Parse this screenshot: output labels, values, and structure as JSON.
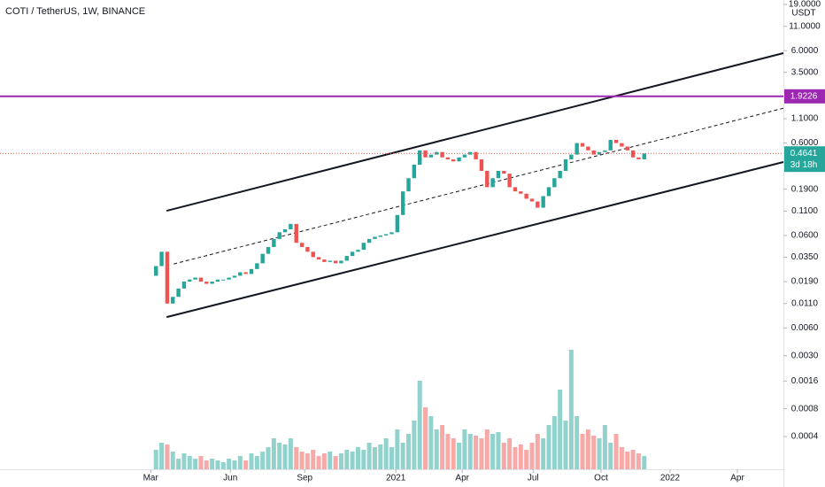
{
  "chart_data": {
    "type": "candlestick",
    "title": "COTI / TetherUS, 1W, BINANCE",
    "currency": "USDT",
    "log_scale": true,
    "xlim": [
      -27.8,
      111.8
    ],
    "xticks": [
      {
        "value": -0.95,
        "label": "Mar"
      },
      {
        "value": 13.25,
        "label": "Jun"
      },
      {
        "value": 26.5,
        "label": "Sep"
      },
      {
        "value": 42.74,
        "label": "2021"
      },
      {
        "value": 54.57,
        "label": "Apr"
      },
      {
        "value": 67.2,
        "label": "Jul"
      },
      {
        "value": 79.3,
        "label": "Oct"
      },
      {
        "value": 91.6,
        "label": "2022"
      },
      {
        "value": 103.6,
        "label": "Apr"
      }
    ],
    "ylim": [
      21.2,
      0.000177
    ],
    "yticks": [
      {
        "value": 19,
        "label": "19.0000"
      },
      {
        "value": 11,
        "label": "11.0000"
      },
      {
        "value": 6,
        "label": "6.0000"
      },
      {
        "value": 3.5,
        "label": "3.5000"
      },
      {
        "value": 1.1,
        "label": "1.1000"
      },
      {
        "value": 0.6,
        "label": "0.6000"
      },
      {
        "value": 0.19,
        "label": "0.1900"
      },
      {
        "value": 0.11,
        "label": "0.1100"
      },
      {
        "value": 0.06,
        "label": "0.0600"
      },
      {
        "value": 0.035,
        "label": "0.0350"
      },
      {
        "value": 0.019,
        "label": "0.0190"
      },
      {
        "value": 0.011,
        "label": "0.0110"
      },
      {
        "value": 0.006,
        "label": "0.0060"
      },
      {
        "value": 0.003,
        "label": "0.0030"
      },
      {
        "value": 0.0016,
        "label": "0.0016"
      },
      {
        "value": 0.0008,
        "label": "0.0008"
      },
      {
        "value": 0.0004,
        "label": "0.0004"
      }
    ],
    "up_color": "#26a69a",
    "down_color": "#ef5350",
    "open": [
      0.022,
      0.028,
      0.04,
      0.011,
      0.013,
      0.016,
      0.019,
      0.02,
      0.021,
      0.019,
      0.018,
      0.019,
      0.02,
      0.02,
      0.021,
      0.022,
      0.024,
      0.023,
      0.026,
      0.03,
      0.038,
      0.045,
      0.055,
      0.065,
      0.07,
      0.08,
      0.05,
      0.045,
      0.04,
      0.035,
      0.033,
      0.031,
      0.032,
      0.03,
      0.032,
      0.036,
      0.04,
      0.042,
      0.05,
      0.055,
      0.058,
      0.06,
      0.062,
      0.065,
      0.1,
      0.18,
      0.25,
      0.35,
      0.5,
      0.42,
      0.45,
      0.48,
      0.42,
      0.4,
      0.38,
      0.42,
      0.45,
      0.48,
      0.4,
      0.3,
      0.2,
      0.25,
      0.3,
      0.28,
      0.2,
      0.18,
      0.17,
      0.15,
      0.14,
      0.12,
      0.16,
      0.2,
      0.25,
      0.3,
      0.4,
      0.45,
      0.6,
      0.55,
      0.5,
      0.45,
      0.48,
      0.5,
      0.65,
      0.6,
      0.55,
      0.5,
      0.42,
      0.4
    ],
    "close": [
      0.028,
      0.04,
      0.011,
      0.013,
      0.016,
      0.019,
      0.02,
      0.021,
      0.019,
      0.018,
      0.019,
      0.02,
      0.02,
      0.021,
      0.022,
      0.024,
      0.023,
      0.026,
      0.03,
      0.038,
      0.045,
      0.055,
      0.065,
      0.07,
      0.08,
      0.05,
      0.045,
      0.04,
      0.035,
      0.033,
      0.031,
      0.032,
      0.03,
      0.032,
      0.036,
      0.04,
      0.042,
      0.05,
      0.055,
      0.058,
      0.06,
      0.062,
      0.065,
      0.1,
      0.18,
      0.25,
      0.35,
      0.5,
      0.42,
      0.45,
      0.48,
      0.42,
      0.4,
      0.38,
      0.42,
      0.45,
      0.48,
      0.4,
      0.3,
      0.2,
      0.25,
      0.3,
      0.28,
      0.2,
      0.18,
      0.17,
      0.15,
      0.14,
      0.12,
      0.16,
      0.2,
      0.25,
      0.3,
      0.4,
      0.45,
      0.6,
      0.55,
      0.5,
      0.45,
      0.48,
      0.5,
      0.65,
      0.6,
      0.55,
      0.5,
      0.42,
      0.4,
      0.4641
    ],
    "vlim": [
      0,
      150
    ],
    "volume": [
      22,
      30,
      28,
      20,
      12,
      18,
      15,
      12,
      15,
      10,
      12,
      10,
      8,
      12,
      10,
      15,
      10,
      18,
      15,
      20,
      25,
      35,
      30,
      28,
      35,
      25,
      20,
      18,
      22,
      15,
      18,
      20,
      15,
      18,
      22,
      20,
      25,
      22,
      30,
      25,
      28,
      35,
      25,
      45,
      30,
      40,
      55,
      100,
      70,
      60,
      45,
      50,
      40,
      35,
      30,
      45,
      40,
      38,
      35,
      45,
      40,
      42,
      30,
      35,
      25,
      28,
      22,
      30,
      40,
      35,
      50,
      60,
      90,
      55,
      135,
      60,
      40,
      45,
      38,
      35,
      50,
      30,
      40,
      25,
      20,
      22,
      18,
      15
    ],
    "hline": 1.9226,
    "hline_color": "#9c27b0",
    "last_price": 0.4641,
    "countdown": "3d 18h",
    "channels": [
      {
        "style": "solid",
        "points": [
          [
            1.89,
            0.111
          ],
          [
            111.8,
            5.64
          ]
        ]
      },
      {
        "style": "solid",
        "points": [
          [
            1.89,
            0.00785
          ],
          [
            111.8,
            0.374
          ]
        ]
      },
      {
        "style": "dashed",
        "points": [
          [
            3.15,
            0.0295
          ],
          [
            111.8,
            1.43
          ]
        ]
      }
    ]
  }
}
